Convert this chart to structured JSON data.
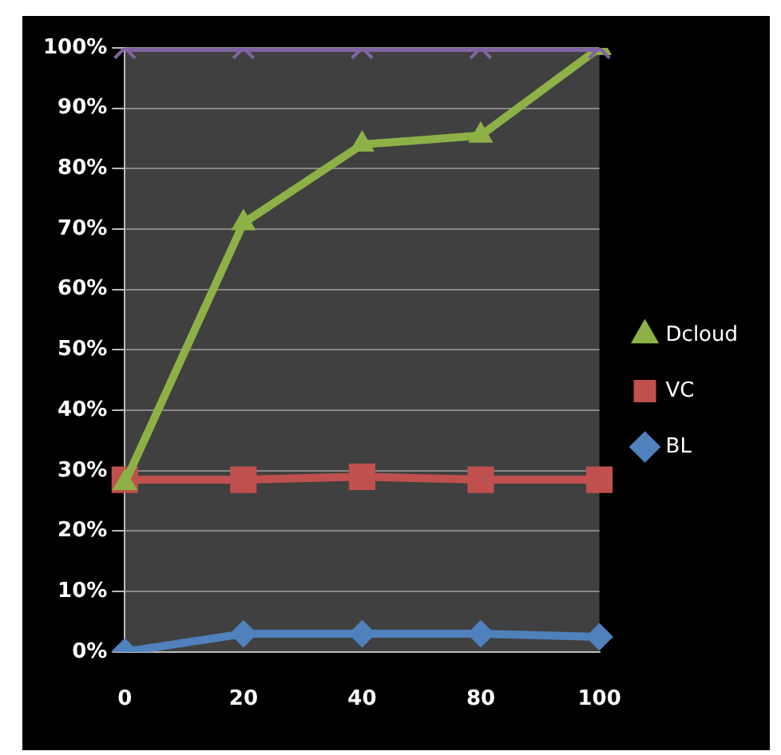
{
  "chart_data": {
    "type": "line",
    "categories": [
      "0",
      "20",
      "40",
      "80",
      "100"
    ],
    "series": [
      {
        "color": "#8064a2",
        "marker": "cross",
        "values": [
          100,
          100,
          100,
          100,
          100
        ]
      },
      {
        "name": "Dcloud",
        "color": "#8db146",
        "marker": "triangle",
        "values": [
          28,
          71,
          84,
          85.5,
          100
        ]
      },
      {
        "name": "VC",
        "color": "#c0504d",
        "marker": "square",
        "values": [
          28.5,
          28.5,
          29,
          28.5,
          28.5
        ]
      },
      {
        "name": "BL",
        "color": "#4f81bd",
        "marker": "diamond",
        "values": [
          0,
          3,
          3,
          3,
          2.5
        ]
      }
    ],
    "ylim": [
      0,
      100
    ],
    "yticks": [
      {
        "value": 0,
        "label": "0%"
      },
      {
        "value": 10,
        "label": "10%"
      },
      {
        "value": 20,
        "label": "20%"
      },
      {
        "value": 30,
        "label": "30%"
      },
      {
        "value": 40,
        "label": "40%"
      },
      {
        "value": 50,
        "label": "50%"
      },
      {
        "value": 60,
        "label": "60%"
      },
      {
        "value": 70,
        "label": "70%"
      },
      {
        "value": 80,
        "label": "80%"
      },
      {
        "value": 90,
        "label": "90%"
      },
      {
        "value": 100,
        "label": "100%"
      }
    ],
    "grid": "y",
    "legend": "right"
  }
}
